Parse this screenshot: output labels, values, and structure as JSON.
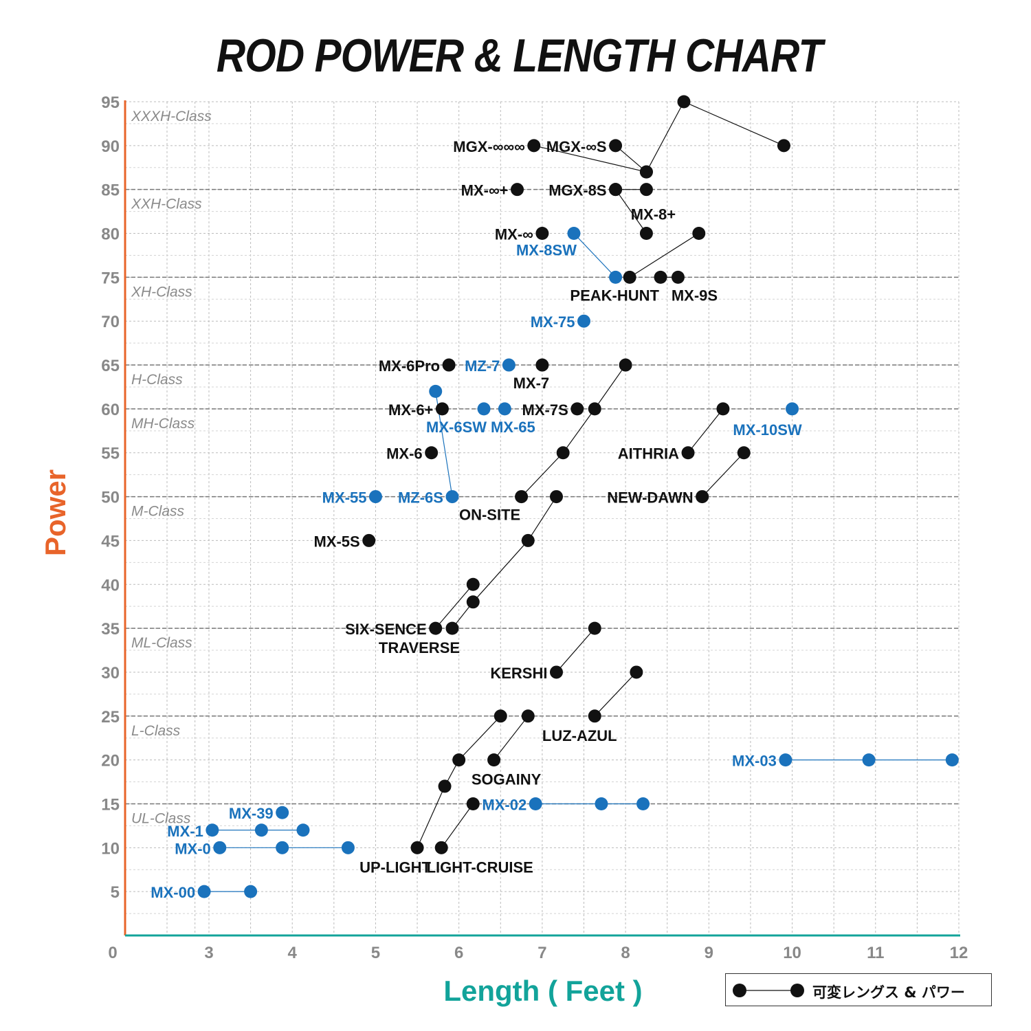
{
  "colors": {
    "black_series": "#111111",
    "blue_series": "#1a72bc",
    "y_axis": "#e8642a",
    "x_axis": "#12a39a",
    "ticks": "#888888",
    "class_labels": "#8a8a8a",
    "grid": "#bbbbbb"
  },
  "chart_data": {
    "type": "scatter",
    "title": "ROD POWER & LENGTH CHART",
    "xlabel": "Length ( Feet )",
    "ylabel": "Power",
    "xlim": [
      0,
      12
    ],
    "ylim": [
      0,
      95
    ],
    "x_ticks": [
      "0",
      "3",
      "4",
      "5",
      "6",
      "7",
      "8",
      "9",
      "10",
      "11",
      "12"
    ],
    "y_ticks": [
      "5",
      "10",
      "15",
      "20",
      "25",
      "30",
      "35",
      "40",
      "45",
      "50",
      "55",
      "60",
      "65",
      "70",
      "75",
      "80",
      "85",
      "90",
      "95"
    ],
    "grid": true,
    "classes": [
      {
        "label": "XXXH-Class",
        "power": 95
      },
      {
        "label": "XXH-Class",
        "power": 85
      },
      {
        "label": "XH-Class",
        "power": 75
      },
      {
        "label": "H-Class",
        "power": 65
      },
      {
        "label": "MH-Class",
        "power": 60
      },
      {
        "label": "M-Class",
        "power": 50
      },
      {
        "label": "ML-Class",
        "power": 35
      },
      {
        "label": "L-Class",
        "power": 25
      },
      {
        "label": "UL-Class",
        "power": 15
      }
    ],
    "legend": {
      "text": "可変レングス & パワー",
      "position": "bottom-right"
    },
    "series": [
      {
        "name": "MGX-∞∞∞",
        "color": "black",
        "points": [
          [
            6.9,
            90
          ],
          [
            8.25,
            87
          ],
          [
            8.7,
            95
          ],
          [
            9.9,
            90
          ]
        ]
      },
      {
        "name": "MGX-∞S",
        "color": "black",
        "points": [
          [
            7.88,
            90
          ],
          [
            8.25,
            87
          ]
        ]
      },
      {
        "name": "MX-∞+",
        "color": "black",
        "points": [
          [
            6.7,
            85
          ]
        ]
      },
      {
        "name": "MGX-8S",
        "color": "black",
        "points": [
          [
            7.88,
            85
          ],
          [
            8.25,
            85
          ]
        ]
      },
      {
        "name": "MX-∞",
        "color": "black",
        "points": [
          [
            7.0,
            80
          ]
        ]
      },
      {
        "name": "MX-8SW",
        "color": "blue",
        "points": [
          [
            7.38,
            80
          ],
          [
            7.88,
            75
          ]
        ]
      },
      {
        "name": "MX-8+",
        "color": "black",
        "points": [
          [
            7.88,
            85
          ],
          [
            8.25,
            80
          ]
        ]
      },
      {
        "name": "PEAK-HUNT",
        "color": "black",
        "points": [
          [
            8.05,
            75
          ],
          [
            8.88,
            80
          ]
        ]
      },
      {
        "name": "MX-9S",
        "color": "black",
        "points": [
          [
            8.42,
            75
          ],
          [
            8.63,
            75
          ]
        ]
      },
      {
        "name": "MX-75",
        "color": "blue",
        "points": [
          [
            7.5,
            70
          ]
        ]
      },
      {
        "name": "MX-6Pro",
        "color": "black",
        "points": [
          [
            5.88,
            65
          ]
        ]
      },
      {
        "name": "MZ-7",
        "color": "blue",
        "points": [
          [
            6.6,
            65
          ]
        ]
      },
      {
        "name": "MX-7",
        "color": "black",
        "points": [
          [
            7.0,
            65
          ]
        ]
      },
      {
        "name": "MX-6+",
        "color": "black",
        "points": [
          [
            5.8,
            60
          ]
        ]
      },
      {
        "name": "MX-6SW",
        "color": "blue",
        "points": [
          [
            6.3,
            60
          ]
        ]
      },
      {
        "name": "MX-65",
        "color": "blue",
        "points": [
          [
            6.55,
            60
          ]
        ]
      },
      {
        "name": "MX-7S",
        "color": "black",
        "points": [
          [
            7.42,
            60
          ]
        ]
      },
      {
        "name": "MX-10SW",
        "color": "blue",
        "points": [
          [
            10.0,
            60
          ]
        ]
      },
      {
        "name": "MX-6",
        "color": "black",
        "points": [
          [
            5.67,
            55
          ]
        ]
      },
      {
        "name": "AITHRIA",
        "color": "black",
        "points": [
          [
            8.75,
            55
          ],
          [
            9.17,
            60
          ]
        ]
      },
      {
        "name": "NEW-DAWN",
        "color": "black",
        "points": [
          [
            8.92,
            50
          ],
          [
            9.42,
            55
          ]
        ]
      },
      {
        "name": "MX-55",
        "color": "blue",
        "points": [
          [
            5.0,
            50
          ]
        ]
      },
      {
        "name": "MZ-6S",
        "color": "blue",
        "points": [
          [
            5.92,
            50
          ],
          [
            5.72,
            62
          ]
        ]
      },
      {
        "name": "ON-SITE",
        "color": "black",
        "points": [
          [
            6.75,
            50
          ],
          [
            7.25,
            55
          ],
          [
            7.63,
            60
          ],
          [
            8.0,
            65
          ]
        ]
      },
      {
        "name": "MX-5S",
        "color": "black",
        "points": [
          [
            4.92,
            45
          ]
        ]
      },
      {
        "name": "SIX-SENCE",
        "color": "black",
        "points": [
          [
            5.72,
            35
          ],
          [
            6.17,
            40
          ]
        ]
      },
      {
        "name": "TRAVERSE",
        "color": "black",
        "points": [
          [
            5.92,
            35
          ],
          [
            6.17,
            38
          ],
          [
            6.83,
            45
          ],
          [
            7.17,
            50
          ]
        ]
      },
      {
        "name": "KERSHI",
        "color": "black",
        "points": [
          [
            7.17,
            30
          ],
          [
            7.63,
            35
          ]
        ]
      },
      {
        "name": "LUZ-AZUL",
        "color": "black",
        "points": [
          [
            7.63,
            25
          ],
          [
            8.13,
            30
          ]
        ]
      },
      {
        "name": "MX-03",
        "color": "blue",
        "points": [
          [
            9.92,
            20
          ],
          [
            10.92,
            20
          ],
          [
            11.92,
            20
          ]
        ]
      },
      {
        "name": "SOGAINY",
        "color": "black",
        "points": [
          [
            6.42,
            20
          ],
          [
            6.83,
            25
          ]
        ]
      },
      {
        "name": "MX-02",
        "color": "blue",
        "points": [
          [
            6.92,
            15
          ],
          [
            7.71,
            15
          ],
          [
            8.21,
            15
          ]
        ]
      },
      {
        "name": "UP-LIGHT",
        "color": "black",
        "points": [
          [
            5.5,
            10
          ],
          [
            5.83,
            17
          ],
          [
            6.0,
            20
          ],
          [
            6.5,
            25
          ]
        ]
      },
      {
        "name": "LIGHT-CRUISE",
        "color": "black",
        "points": [
          [
            5.79,
            10
          ],
          [
            6.17,
            15
          ]
        ]
      },
      {
        "name": "MX-39",
        "color": "blue",
        "points": [
          [
            3.88,
            14
          ]
        ]
      },
      {
        "name": "MX-1",
        "color": "blue",
        "points": [
          [
            3.04,
            12
          ],
          [
            3.63,
            12
          ],
          [
            4.13,
            12
          ]
        ]
      },
      {
        "name": "MX-0",
        "color": "blue",
        "points": [
          [
            3.13,
            10
          ],
          [
            3.88,
            10
          ],
          [
            4.67,
            10
          ]
        ]
      },
      {
        "name": "MX-00",
        "color": "blue",
        "points": [
          [
            2.83,
            5
          ],
          [
            3.5,
            5
          ]
        ]
      }
    ]
  }
}
